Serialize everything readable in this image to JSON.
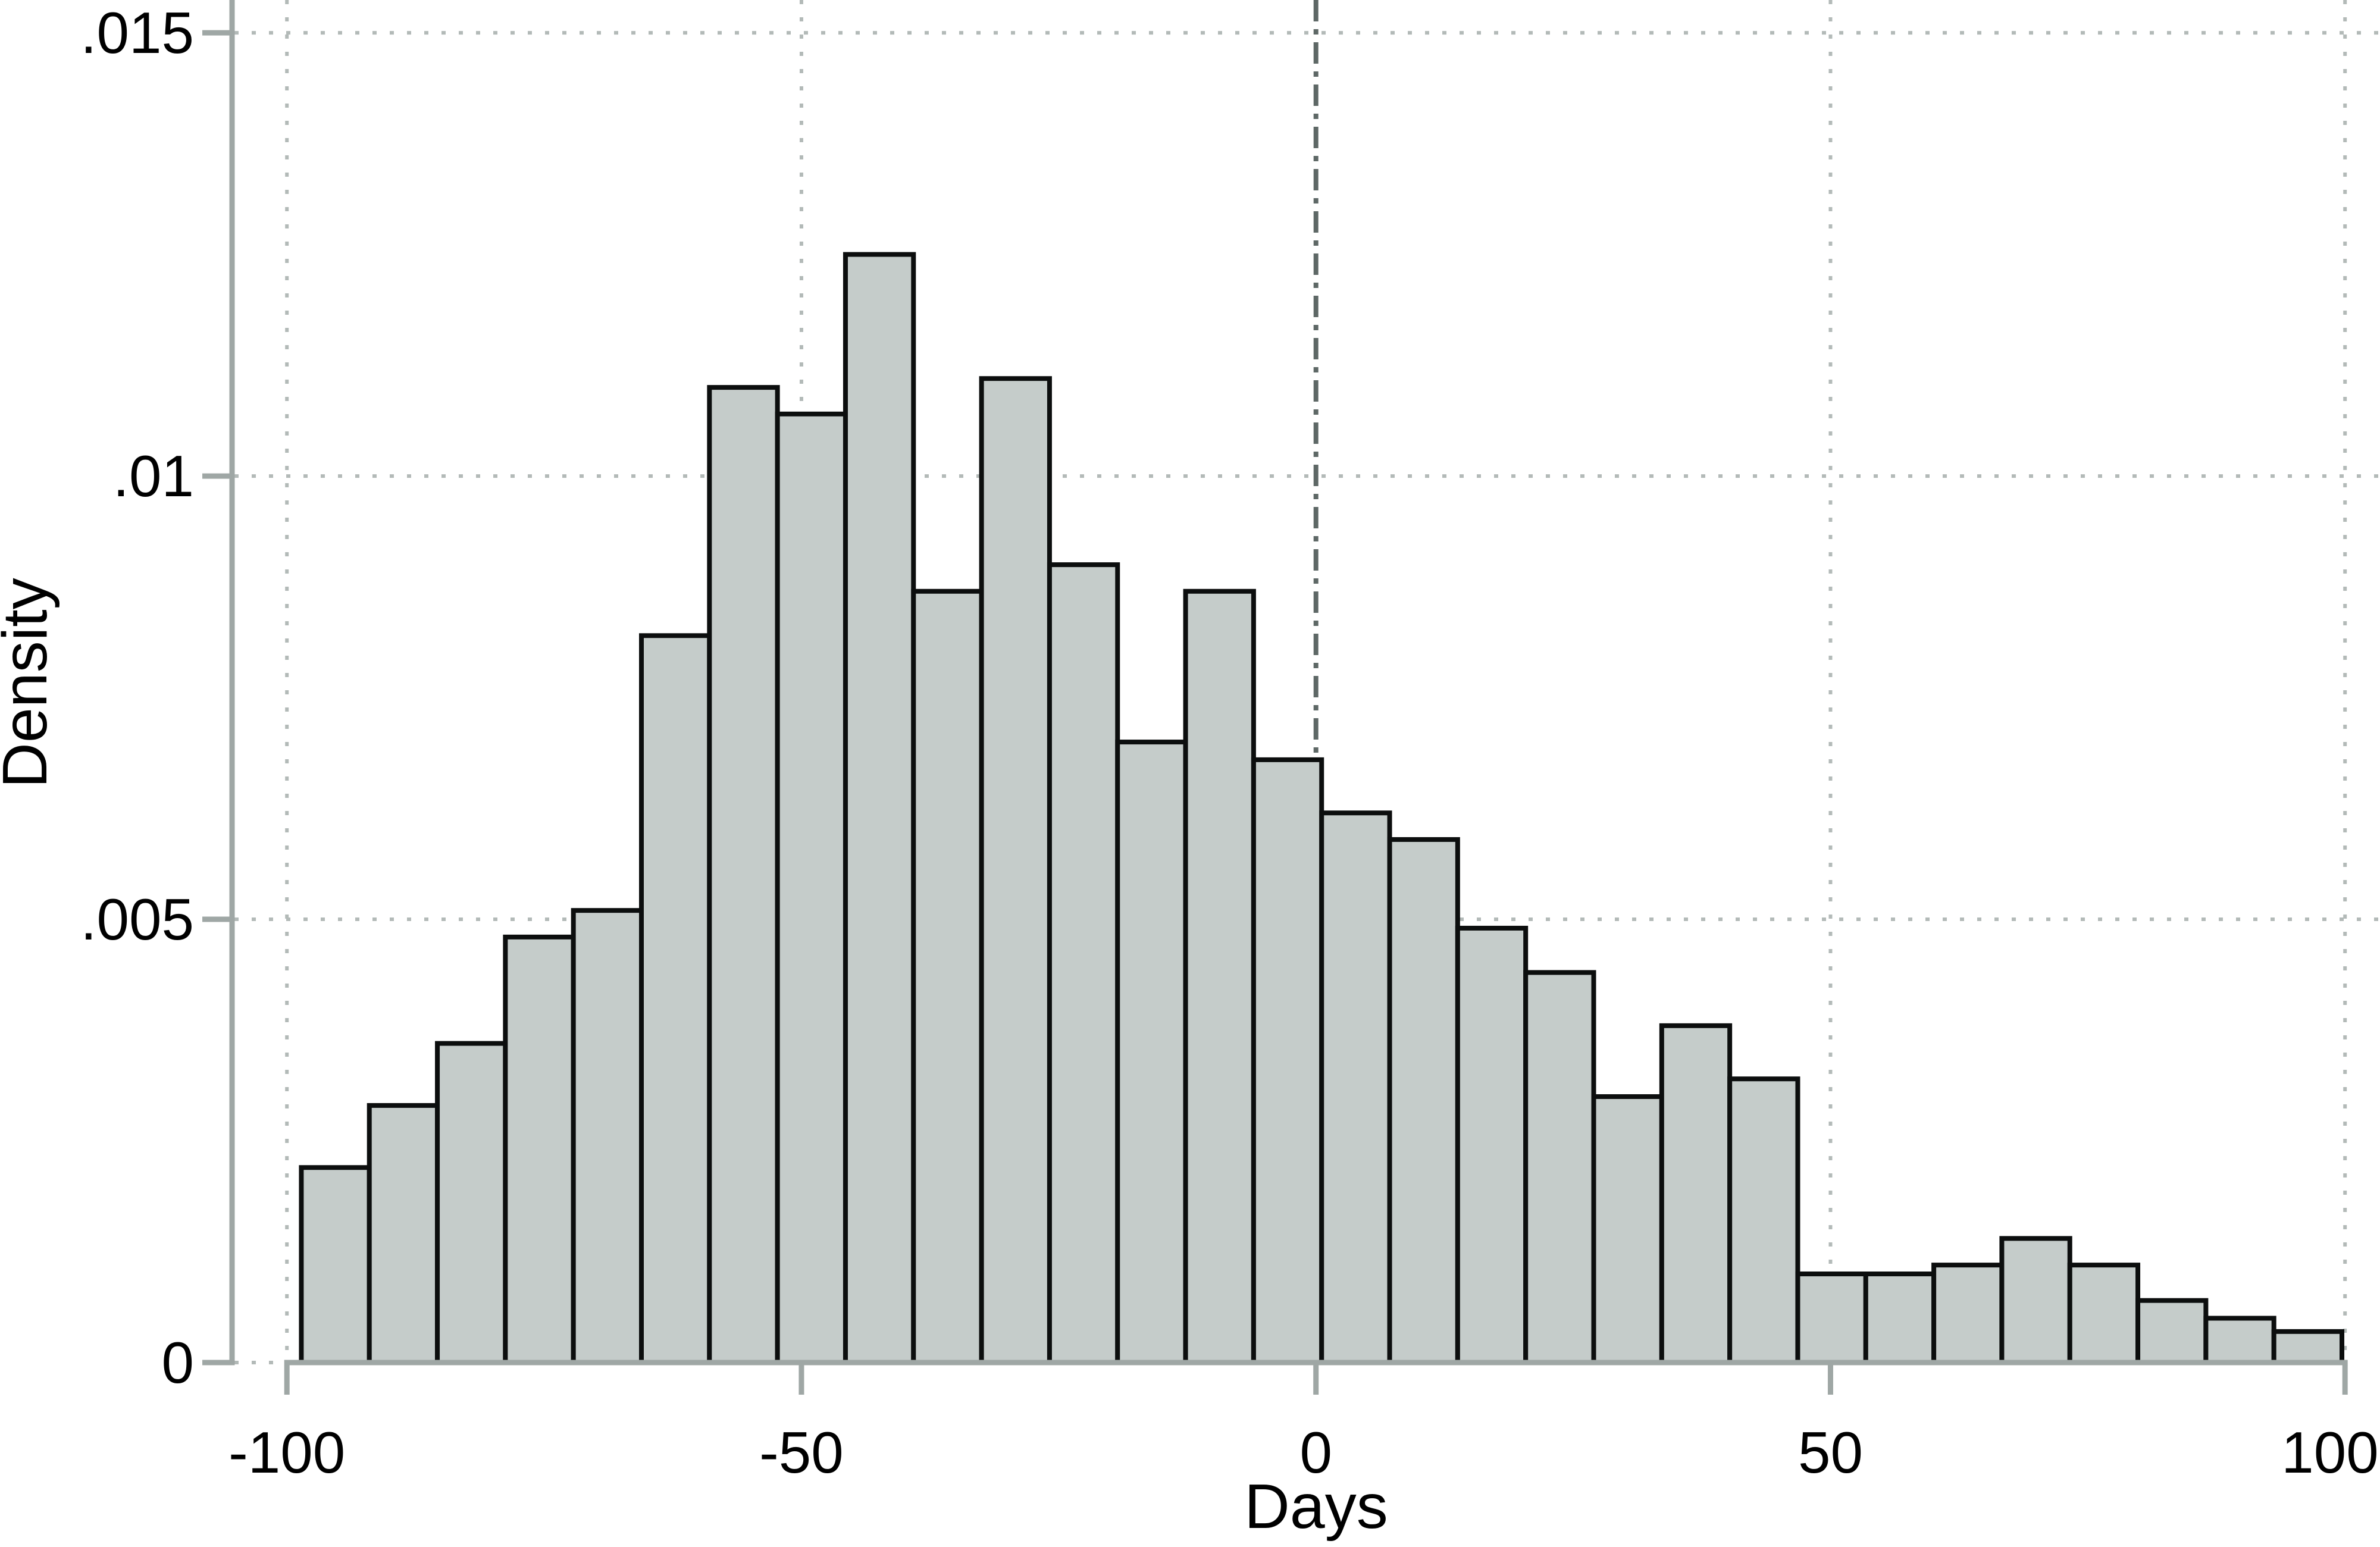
{
  "chart_data": {
    "type": "bar",
    "subtype": "histogram",
    "title": "",
    "xlabel": "Days",
    "ylabel": "Density",
    "x_ticks": [
      {
        "value": -100,
        "label": "-100"
      },
      {
        "value": -50,
        "label": "-50"
      },
      {
        "value": 0,
        "label": "0"
      },
      {
        "value": 50,
        "label": "50"
      },
      {
        "value": 100,
        "label": "100"
      }
    ],
    "y_ticks": [
      {
        "value": 0,
        "label": "0"
      },
      {
        "value": 0.005,
        "label": ".005"
      },
      {
        "value": 0.01,
        "label": ".01"
      },
      {
        "value": 0.015,
        "label": ".015"
      }
    ],
    "xlim": [
      -105.1,
      103.4
    ],
    "ylim": [
      0,
      0.01537
    ],
    "grid": true,
    "legend": "none",
    "reference_line_x": 0,
    "bins": {
      "start": -98.6,
      "width": 6.61,
      "count": 30
    },
    "values": [
      0.0022,
      0.0029,
      0.0036,
      0.0048,
      0.0051,
      0.0082,
      0.011,
      0.0107,
      0.0125,
      0.0087,
      0.0111,
      0.009,
      0.007,
      0.0087,
      0.0068,
      0.0062,
      0.0059,
      0.0049,
      0.0044,
      0.003,
      0.0038,
      0.0032,
      0.001,
      0.001,
      0.0011,
      0.0014,
      0.0011,
      0.0007,
      0.0005,
      0.00035
    ],
    "colors": {
      "bar_fill": "#c5ccca",
      "bar_stroke": "#0c0e0e",
      "axis": "#9fa7a5",
      "grid": "#b3bab8",
      "reference_line": "#5e6866",
      "text": "#000000",
      "background": "#ffffff"
    }
  }
}
